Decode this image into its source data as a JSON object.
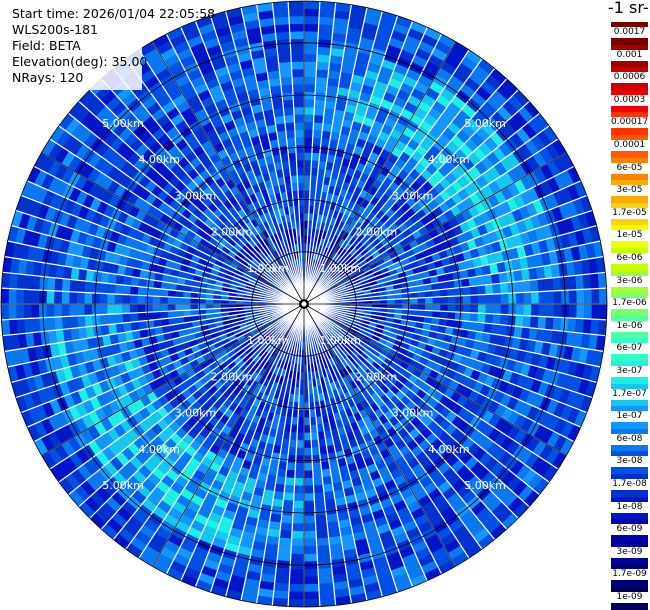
{
  "header": {
    "start_time": "Start time: 2026/01/04 22:05:58",
    "instrument": "WLS200s-181",
    "field": "Field: BETA",
    "elevation": "Elevation(deg): 35.00",
    "nrays": "NRays: 120"
  },
  "colorbar": {
    "unit_fragment": "-1 sr-",
    "labels": [
      "0.0017",
      "0.001",
      "0.0006",
      "0.0003",
      "0.00017",
      "0.0001",
      "6e-05",
      "3e-05",
      "1.7e-05",
      "1e-05",
      "6e-06",
      "3e-06",
      "1.7e-06",
      "1e-06",
      "6e-07",
      "3e-07",
      "1.7e-07",
      "1e-07",
      "6e-08",
      "3e-08",
      "1.7e-08",
      "1e-08",
      "6e-09",
      "3e-09",
      "1.7e-09",
      "1e-09"
    ],
    "colors": [
      "#7a0000",
      "#a00000",
      "#c80000",
      "#f00000",
      "#ff3200",
      "#ff5a00",
      "#ff8200",
      "#ffaa00",
      "#ffd200",
      "#f0ff00",
      "#c8ff00",
      "#a0ff32",
      "#78ff6e",
      "#50ffa0",
      "#32ffc8",
      "#1ef0e6",
      "#14c8f0",
      "#1496ff",
      "#0a78f0",
      "#0050e6",
      "#0032d2",
      "#0014c8",
      "#0000aa",
      "#000096",
      "#000078",
      "#00005a"
    ]
  },
  "chart_data": {
    "type": "heatmap",
    "projection": "polar PPI (plan position indicator)",
    "field": "BETA",
    "elevation_deg": 35.0,
    "n_rays": 120,
    "range_unit": "km",
    "range_rings_km": [
      1,
      2,
      3,
      4,
      5
    ],
    "range_ring_labels": [
      "1.00km",
      "2.00km",
      "3.00km",
      "4.00km",
      "5.00km"
    ],
    "max_range_km": 5.8,
    "color_scale": "log",
    "color_range": [
      1e-09,
      0.0017
    ],
    "typical_value_range": [
      1e-08,
      3e-07
    ],
    "enhanced_ring_km": [
      3.4,
      5.0
    ],
    "enhanced_value": 1.7e-07,
    "grid": true
  }
}
